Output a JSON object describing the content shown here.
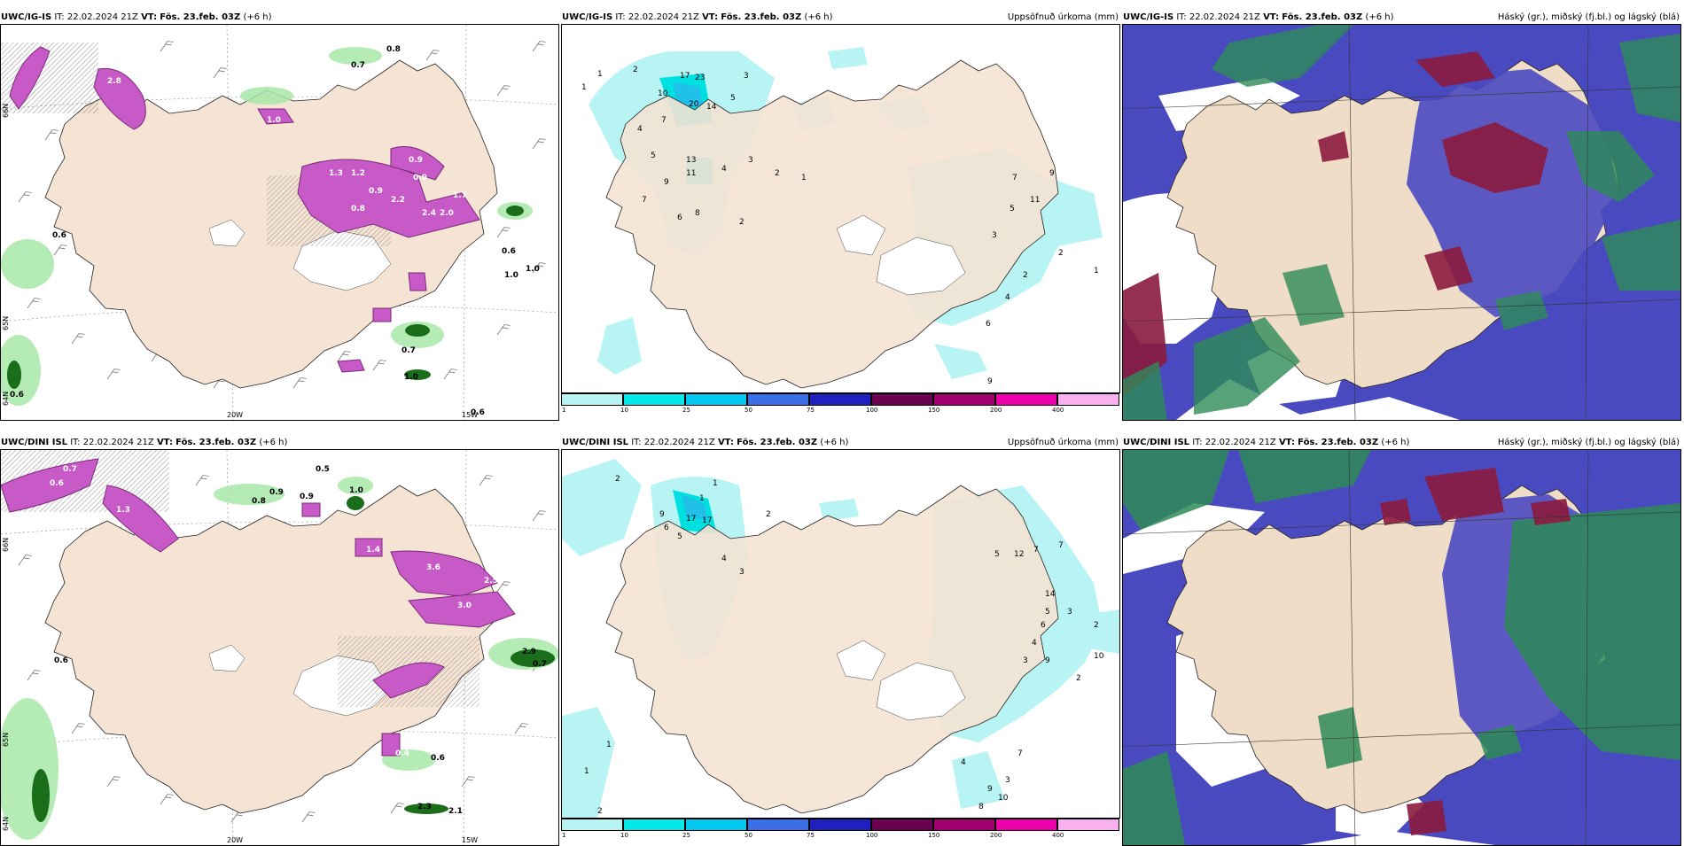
{
  "panels": [
    {
      "id": "p1",
      "model": "UWC/IG-IS",
      "it_label": "IT:",
      "it_value": "22.02.2024 21Z",
      "vt_label": "VT:",
      "vt_value": "Fös. 23.feb. 03Z",
      "lead": "(+6 h)",
      "right_title": "",
      "axis_labels": [
        "66N",
        "65N",
        "64N",
        "20W",
        "15W"
      ],
      "values": [
        "0.7",
        "0.8",
        "0.6",
        "0.6",
        "1.0",
        "0.6",
        "2.8",
        "2.2",
        "1.3",
        "1.2",
        "0.9",
        "2.0",
        "2.4",
        "1.7",
        "1.0",
        "0.6",
        "0.9",
        "0.8",
        "1.0",
        "0.7",
        "0.9",
        "1.0"
      ]
    },
    {
      "id": "p2",
      "model": "UWC/IG-IS",
      "it_label": "IT:",
      "it_value": "22.02.2024 21Z",
      "vt_label": "VT:",
      "vt_value": "Fös. 23.feb. 03Z",
      "lead": "(+6 h)",
      "right_title": "Uppsöfnuð úrkoma (mm)",
      "values": [
        "2",
        "1",
        "1",
        "17",
        "23",
        "10",
        "7",
        "20",
        "14",
        "5",
        "3",
        "4",
        "13",
        "11",
        "9",
        "8",
        "6",
        "5",
        "7",
        "4",
        "3",
        "2",
        "1",
        "2",
        "9",
        "11",
        "7",
        "5",
        "3",
        "2",
        "1",
        "2",
        "4",
        "6",
        "9"
      ]
    },
    {
      "id": "p3",
      "model": "UWC/IG-IS",
      "it_label": "IT:",
      "it_value": "22.02.2024 21Z",
      "vt_label": "VT:",
      "vt_value": "Fös. 23.feb. 03Z",
      "lead": "(+6 h)",
      "right_title": "Háský (gr.), miðský (fj.bl.) og lágský (blá)"
    },
    {
      "id": "p4",
      "model": "UWC/DINI ISL",
      "it_label": "IT:",
      "it_value": "22.02.2024 21Z",
      "vt_label": "VT:",
      "vt_value": "Fös. 23.feb. 03Z",
      "lead": "(+6 h)",
      "right_title": "",
      "axis_labels": [
        "66N",
        "65N",
        "64N",
        "20W",
        "15W"
      ],
      "values": [
        "0.7",
        "0.6",
        "0.5",
        "0.8",
        "0.9",
        "0.9",
        "1.0",
        "1.4",
        "1.3",
        "3.6",
        "2.5",
        "3.0",
        "2.9",
        "2.3",
        "2.1",
        "0.6",
        "0.7",
        "0.6",
        "0.4"
      ]
    },
    {
      "id": "p5",
      "model": "UWC/DINI ISL",
      "it_label": "IT:",
      "it_value": "22.02.2024 21Z",
      "vt_label": "VT:",
      "vt_value": "Fös. 23.feb. 03Z",
      "lead": "(+6 h)",
      "right_title": "Uppsöfnuð úrkoma (mm)",
      "values": [
        "2",
        "1",
        "1",
        "17",
        "17",
        "9",
        "6",
        "5",
        "4",
        "3",
        "2",
        "1",
        "7",
        "12",
        "5",
        "3",
        "2",
        "14",
        "9",
        "7",
        "6",
        "5",
        "4",
        "3",
        "2",
        "10",
        "10",
        "9",
        "8",
        "7",
        "4",
        "3",
        "1",
        "2"
      ]
    },
    {
      "id": "p6",
      "model": "UWC/DINI ISL",
      "it_label": "IT:",
      "it_value": "22.02.2024 21Z",
      "vt_label": "VT:",
      "vt_value": "Fös. 23.feb. 03Z",
      "lead": "(+6 h)",
      "right_title": "Háský (gr.), miðský (fj.bl.) og lágský (blá)"
    }
  ],
  "precip_legend": {
    "ticks": [
      "1",
      "10",
      "25",
      "50",
      "75",
      "100",
      "150",
      "200",
      "400"
    ],
    "colors": [
      "#b8f4f4",
      "#00e8e8",
      "#00c8ee",
      "#3a6fe8",
      "#2020c0",
      "#6a0050",
      "#a0006e",
      "#ee00aa",
      "#f8b0ee"
    ]
  },
  "colors": {
    "land": "#f5e3d3",
    "sea": "#ffffff",
    "snow_magenta": "#cc44cc",
    "rain_green": "#88dd88",
    "cloud_high": "#2e8b57",
    "cloud_mid": "#8b1a3e",
    "cloud_low": "#4040b0"
  }
}
